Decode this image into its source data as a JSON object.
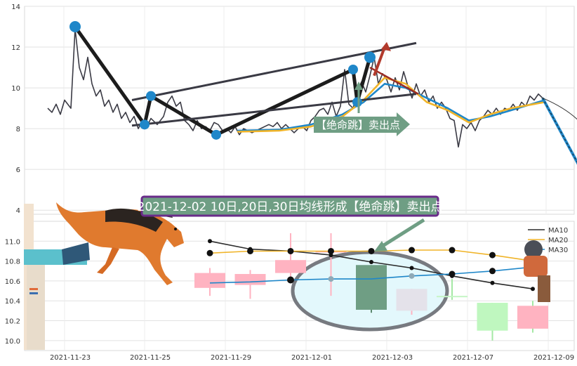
{
  "colors": {
    "price_line": "#3a3a44",
    "ma10": "#2b2b2b",
    "ma20": "#f0b429",
    "ma30": "#1f87c9",
    "pivot_dot": "#1f87c9",
    "callout_fill": "#6f9e84",
    "banner_border": "#6a2c8a",
    "candle_up": "#ffb3c1",
    "candle_down": "#6f9e84",
    "ellipse_fill": "#e3f8fc",
    "ellipse_stroke": "#777a80"
  },
  "chart_data": [
    {
      "type": "line",
      "panel": "upper",
      "ylim": [
        3.8,
        14
      ],
      "y_ticks": [
        "14",
        "12",
        "10",
        "8",
        "6",
        "4"
      ],
      "grid": true,
      "series": [
        {
          "key": "price",
          "values": [
            [
              0,
              9.0
            ],
            [
              2,
              8.8
            ],
            [
              4,
              9.2
            ],
            [
              6,
              8.7
            ],
            [
              8,
              9.4
            ],
            [
              11,
              9.0
            ],
            [
              13,
              12.9
            ],
            [
              15,
              11.0
            ],
            [
              17,
              10.4
            ],
            [
              19,
              11.5
            ],
            [
              21,
              10.2
            ],
            [
              23,
              9.6
            ],
            [
              25,
              9.9
            ],
            [
              27,
              9.1
            ],
            [
              29,
              9.4
            ],
            [
              31,
              8.8
            ],
            [
              33,
              9.2
            ],
            [
              35,
              8.5
            ],
            [
              37,
              8.8
            ],
            [
              39,
              8.3
            ],
            [
              41,
              8.6
            ],
            [
              43,
              8.0
            ],
            [
              45,
              8.4
            ],
            [
              47,
              8.1
            ],
            [
              49,
              8.5
            ],
            [
              52,
              8.2
            ],
            [
              55,
              8.6
            ],
            [
              57,
              9.3
            ],
            [
              59,
              9.6
            ],
            [
              61,
              9.1
            ],
            [
              63,
              9.3
            ],
            [
              65,
              8.4
            ],
            [
              67,
              8.2
            ],
            [
              69,
              7.9
            ],
            [
              71,
              8.4
            ],
            [
              73,
              8.0
            ],
            [
              75,
              8.1
            ],
            [
              77,
              7.9
            ],
            [
              79,
              8.3
            ],
            [
              81,
              8.2
            ],
            [
              83,
              7.9
            ],
            [
              85,
              8.0
            ],
            [
              87,
              7.8
            ],
            [
              89,
              8.1
            ],
            [
              91,
              7.7
            ],
            [
              93,
              8.0
            ],
            [
              95,
              7.9
            ],
            [
              97,
              7.8
            ],
            [
              99,
              7.9
            ],
            [
              101,
              8.0
            ],
            [
              103,
              8.1
            ],
            [
              105,
              8.2
            ],
            [
              107,
              8.1
            ],
            [
              109,
              8.3
            ],
            [
              111,
              8.0
            ],
            [
              113,
              8.2
            ],
            [
              115,
              8.0
            ],
            [
              117,
              7.8
            ],
            [
              119,
              8.0
            ],
            [
              121,
              8.1
            ],
            [
              123,
              7.9
            ],
            [
              125,
              8.4
            ],
            [
              127,
              8.6
            ],
            [
              129,
              8.9
            ],
            [
              131,
              9.0
            ],
            [
              133,
              8.7
            ],
            [
              135,
              9.3
            ],
            [
              137,
              8.6
            ],
            [
              139,
              9.1
            ],
            [
              141,
              10.9
            ],
            [
              143,
              9.2
            ],
            [
              145,
              9.0
            ],
            [
              147,
              9.8
            ],
            [
              149,
              10.3
            ],
            [
              151,
              9.8
            ],
            [
              153,
              10.6
            ],
            [
              155,
              11.5
            ],
            [
              157,
              10.2
            ],
            [
              159,
              10.7
            ],
            [
              161,
              10.4
            ],
            [
              163,
              9.8
            ],
            [
              165,
              10.5
            ],
            [
              167,
              9.9
            ],
            [
              169,
              10.8
            ],
            [
              171,
              10.1
            ],
            [
              173,
              9.5
            ],
            [
              175,
              10.2
            ],
            [
              177,
              9.6
            ],
            [
              179,
              9.9
            ],
            [
              181,
              9.3
            ],
            [
              183,
              9.6
            ],
            [
              185,
              9.0
            ],
            [
              187,
              9.3
            ],
            [
              189,
              9.0
            ],
            [
              191,
              8.5
            ],
            [
              193,
              8.4
            ],
            [
              195,
              7.1
            ],
            [
              197,
              8.2
            ],
            [
              199,
              8.0
            ],
            [
              201,
              8.3
            ],
            [
              203,
              7.9
            ],
            [
              205,
              8.4
            ],
            [
              207,
              8.6
            ],
            [
              209,
              8.9
            ],
            [
              211,
              8.7
            ],
            [
              213,
              9.0
            ],
            [
              215,
              8.7
            ],
            [
              217,
              9.0
            ],
            [
              219,
              8.9
            ],
            [
              221,
              9.2
            ],
            [
              223,
              8.9
            ],
            [
              225,
              9.3
            ],
            [
              227,
              9.1
            ],
            [
              229,
              9.6
            ],
            [
              231,
              9.4
            ],
            [
              233,
              9.7
            ],
            [
              235,
              9.5
            ]
          ]
        },
        {
          "key": "ma30",
          "values": [
            [
              90,
              7.9
            ],
            [
              110,
              7.95
            ],
            [
              125,
              8.2
            ],
            [
              140,
              8.7
            ],
            [
              150,
              9.3
            ],
            [
              160,
              10.2
            ],
            [
              170,
              10.0
            ],
            [
              180,
              9.5
            ],
            [
              190,
              9.0
            ],
            [
              200,
              8.4
            ],
            [
              210,
              8.6
            ],
            [
              220,
              8.9
            ],
            [
              236,
              9.4
            ]
          ]
        },
        {
          "key": "ma20",
          "values": [
            [
              90,
              7.85
            ],
            [
              110,
              7.9
            ],
            [
              125,
              8.1
            ],
            [
              140,
              8.6
            ],
            [
              150,
              9.4
            ],
            [
              160,
              10.5
            ],
            [
              170,
              10.2
            ],
            [
              180,
              9.3
            ],
            [
              190,
              8.9
            ],
            [
              200,
              8.3
            ],
            [
              210,
              8.7
            ],
            [
              220,
              9.0
            ],
            [
              236,
              9.3
            ]
          ]
        }
      ],
      "pivots": [
        [
          13,
          13.0
        ],
        [
          46,
          8.2
        ],
        [
          49,
          9.6
        ],
        [
          80,
          7.7
        ],
        [
          145,
          10.9
        ],
        [
          147,
          9.3
        ],
        [
          153,
          11.5
        ]
      ],
      "forecast_end": [
        259,
        4.9
      ]
    },
    {
      "type": "candlestick",
      "panel": "lower",
      "ylim": [
        9.9,
        11.2
      ],
      "y_ticks": [
        "11.0",
        "10.8",
        "10.6",
        "10.4",
        "10.2",
        "10.0"
      ],
      "x_ticks": [
        "2021-11-23",
        "2021-11-25",
        "2021-11-29",
        "2021-12-01",
        "2021-12-03",
        "2021-12-07",
        "2021-12-09"
      ],
      "grid": true,
      "candles": [
        {
          "open": 10.53,
          "close": 10.68,
          "high": 10.73,
          "low": 10.45
        },
        {
          "open": 10.56,
          "close": 10.67,
          "high": 10.71,
          "low": 10.42
        },
        {
          "open": 10.68,
          "close": 10.81,
          "high": 11.08,
          "low": 10.63
        },
        {
          "open": 10.9,
          "close": 10.9,
          "high": 11.08,
          "low": 10.45
        },
        {
          "open": 10.76,
          "close": 10.31,
          "high": 10.76,
          "low": 10.28
        },
        {
          "open": 10.52,
          "close": 10.3,
          "high": 10.52,
          "low": 10.26
        },
        {
          "open": 10.45,
          "close": 10.45,
          "high": 10.62,
          "low": 10.41
        },
        {
          "open": 10.38,
          "close": 10.1,
          "high": 10.38,
          "low": 10.0
        },
        {
          "open": 10.12,
          "close": 10.35,
          "high": 10.4,
          "low": 10.08
        }
      ],
      "series": [
        {
          "name": "MA10",
          "key": "ma10",
          "values": [
            11.0,
            10.92,
            10.9,
            10.86,
            10.79,
            10.73,
            10.65,
            10.58,
            10.52
          ]
        },
        {
          "name": "MA20",
          "key": "ma20",
          "values": [
            10.88,
            10.9,
            10.9,
            10.9,
            10.9,
            10.91,
            10.91,
            10.86,
            10.8
          ]
        },
        {
          "name": "MA30",
          "key": "ma30",
          "values": [
            10.58,
            10.59,
            10.61,
            10.62,
            10.62,
            10.65,
            10.67,
            10.7,
            10.74
          ]
        }
      ]
    }
  ],
  "annotations": {
    "callout": "【绝命跳】卖出点",
    "banner": "2021-12-02 10日,20日,30日均线形成【绝命跳】卖出点"
  }
}
